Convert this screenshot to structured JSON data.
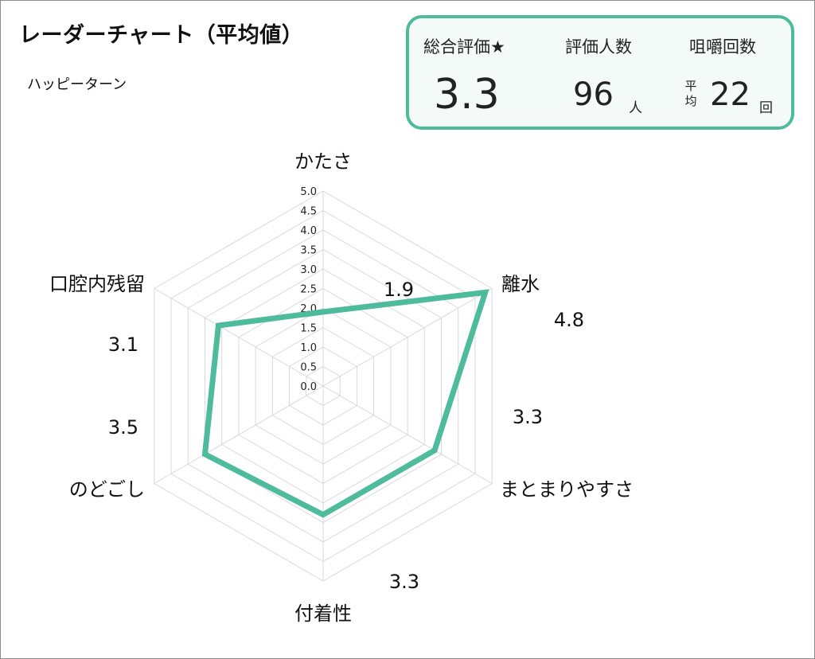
{
  "title": "レーダーチャート（平均値）",
  "product": "ハッピーターン",
  "stats": {
    "rating_label": "総合評価★",
    "rating_value": "3.3",
    "reviewers_label": "評価人数",
    "reviewers_value": "96",
    "reviewers_unit": "人",
    "chews_label": "咀嚼回数",
    "chews_prefix_1": "平",
    "chews_prefix_2": "均",
    "chews_value": "22",
    "chews_unit": "回"
  },
  "colors": {
    "accent": "#4dbb9c",
    "grid": "#d9d9d9"
  },
  "chart_data": {
    "type": "radar",
    "categories": [
      "かたさ",
      "離水",
      "まとまりやすさ",
      "付着性",
      "のどごし",
      "口腔内残留"
    ],
    "values": [
      1.9,
      4.8,
      3.3,
      3.3,
      3.5,
      3.1
    ],
    "value_labels": [
      "1.9",
      "4.8",
      "3.3",
      "3.3",
      "3.5",
      "3.1"
    ],
    "rlim": [
      0,
      5
    ],
    "ticks": [
      "0.0",
      "0.5",
      "1.0",
      "1.5",
      "2.0",
      "2.5",
      "3.0",
      "3.5",
      "4.0",
      "4.5",
      "5.0"
    ],
    "grid": true,
    "legend": "none"
  }
}
